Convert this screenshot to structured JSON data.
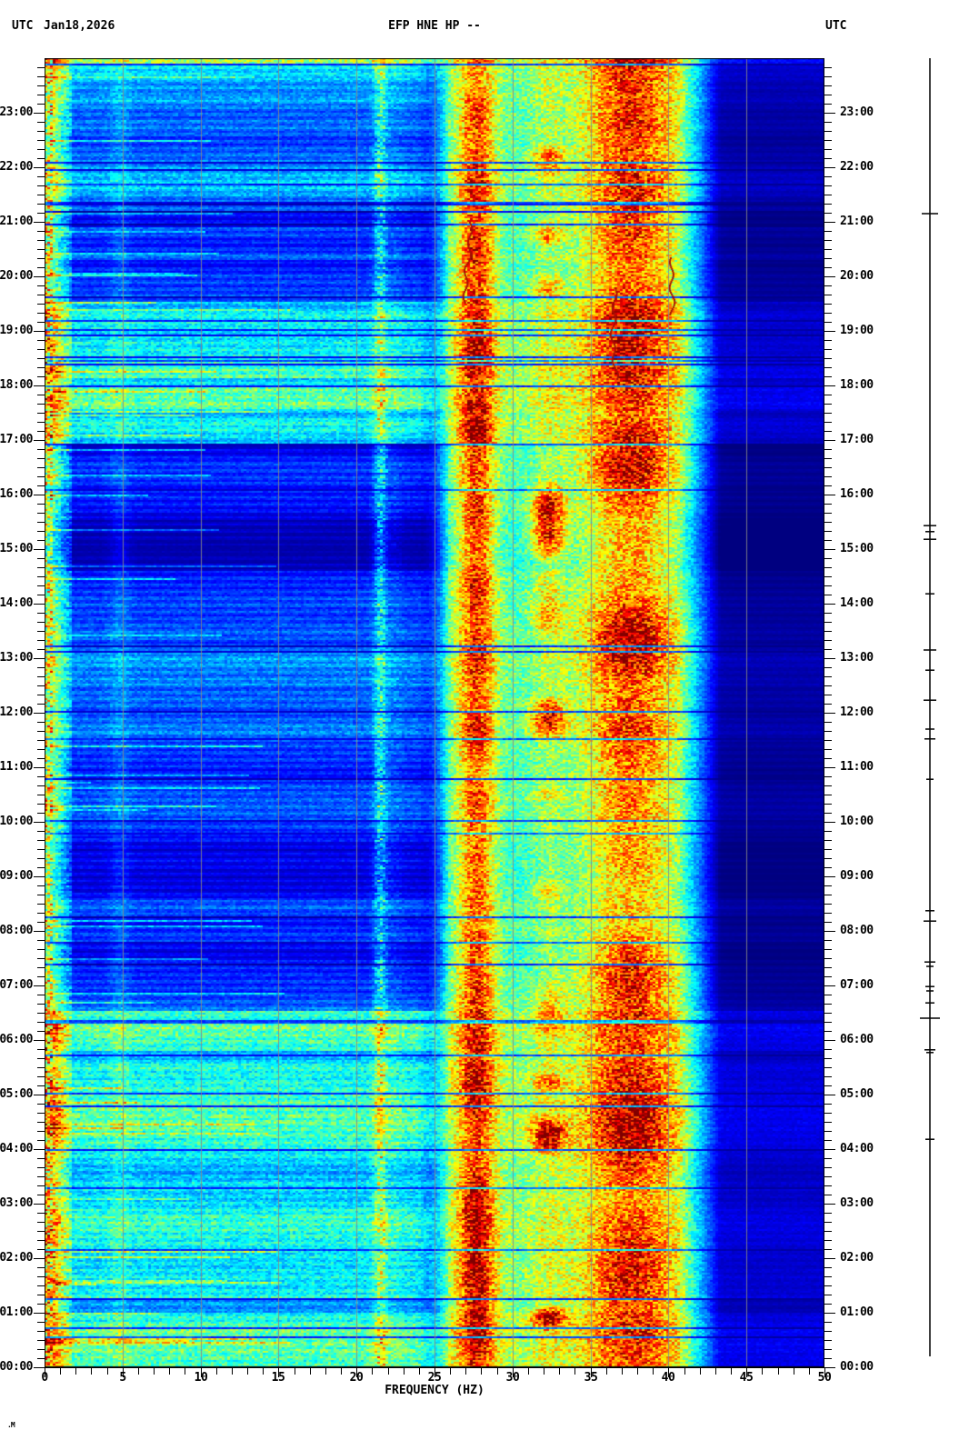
{
  "header": {
    "tz_left": "UTC",
    "date": "Jan18,2026",
    "title": "EFP HNE HP --",
    "tz_right": "UTC"
  },
  "footer": {
    "glyph": ".M"
  },
  "colors": {
    "background": "#ffffff",
    "grid_line": "#8c8c8c",
    "axis": "#000000",
    "trace": "#000000",
    "transient_red": "#a50f05"
  },
  "chart_data": {
    "type": "heatmap",
    "subtype": "seismic spectrogram",
    "title": "EFP HNE HP --",
    "date": "Jan18,2026",
    "timezone": "UTC",
    "xlabel": "FREQUENCY (HZ)",
    "x_range_hz": [
      0,
      50
    ],
    "x_major_ticks_hz": [
      0,
      5,
      10,
      15,
      20,
      25,
      30,
      35,
      40,
      45,
      50
    ],
    "x_tick_labels": [
      "0",
      "5",
      "10",
      "15",
      "20",
      "25",
      "30",
      "35",
      "40",
      "45",
      "50"
    ],
    "x_minor_step_hz": 1,
    "y_range_hours": [
      0,
      24
    ],
    "y_axis_direction": "00:00 at bottom, 24:00 at top",
    "y_tick_labels": [
      "23:00",
      "22:00",
      "21:00",
      "20:00",
      "19:00",
      "18:00",
      "17:00",
      "16:00",
      "15:00",
      "14:00",
      "13:00",
      "12:00",
      "11:00",
      "10:00",
      "09:00",
      "08:00",
      "07:00",
      "06:00",
      "05:00",
      "04:00",
      "03:00",
      "02:00",
      "01:00",
      "00:00"
    ],
    "y_minor_step_minutes": 10,
    "grid_lines_hz": [
      5,
      10,
      15,
      20,
      25,
      30,
      35,
      40,
      45
    ],
    "colormap": "jet",
    "time_periods": [
      {
        "from": 0.0,
        "to": 6.55,
        "level": 0.4,
        "desc": "high broadband noise 00:00-06:30"
      },
      {
        "from": 6.55,
        "to": 16.95,
        "level": 0.17,
        "desc": "quiet daytime 06:30-17:00"
      },
      {
        "from": 16.95,
        "to": 19.35,
        "level": 0.38,
        "desc": "high broadband noise 17:00-19:20"
      },
      {
        "from": 19.35,
        "to": 24.01,
        "level": 0.26,
        "desc": "moderate evening 19:20-24:00"
      }
    ],
    "dark_overlays": [
      {
        "from": 19.55,
        "to": 20.3,
        "delta": -0.13
      },
      {
        "from": 20.9,
        "to": 21.2,
        "delta": -0.07
      },
      {
        "from": 23.3,
        "to": 23.6,
        "delta": -0.08
      },
      {
        "from": 1.0,
        "to": 1.25,
        "delta": -0.16
      },
      {
        "from": 5.55,
        "to": 5.8,
        "delta": -0.1
      },
      {
        "from": 6.3,
        "to": 6.5,
        "delta": -0.1
      },
      {
        "from": 12.5,
        "to": 13.2,
        "delta": 0.08
      },
      {
        "from": 14.6,
        "to": 16.2,
        "delta": -0.05
      },
      {
        "from": 17.4,
        "to": 17.55,
        "delta": -0.12
      },
      {
        "from": 18.0,
        "to": 18.12,
        "delta": -0.12
      }
    ],
    "frequency_bands": {
      "plateau": {
        "rise_hz": [
          24,
          26
        ],
        "fall_hz": [
          40.6,
          43.6
        ],
        "level": 0.47,
        "high_tail_level": 0.045
      },
      "bands": [
        {
          "center_hz": 27.7,
          "sigma_hz": 0.85,
          "amp": 0.24,
          "amp_noise": 0.26,
          "noise_scale": 9,
          "desc": "strong persistent narrowband, red core"
        },
        {
          "center_hz": 32.3,
          "sigma_hz": 0.75,
          "amp": 0.05,
          "amp_noise": 0.45,
          "noise_scale": 7,
          "threshold": 0.58,
          "desc": "intermittent orange blobs"
        },
        {
          "center_hz": 37.6,
          "sigma_hz": 2.1,
          "amp": 0.22,
          "amp_noise": 0.3,
          "noise_scale": 12,
          "desc": "broad strong band, heavy red mottling"
        }
      ],
      "lines": [
        {
          "center_hz": 4.85,
          "sigma_hz": 0.45,
          "amp": 0.06
        },
        {
          "center_hz": 21.55,
          "sigma_hz": 0.3,
          "amp": 0.26
        },
        {
          "center_hz": 22.5,
          "sigma_hz": 0.35,
          "amp": 0.05
        }
      ],
      "low_edge": {
        "hot_below_hz": 0.6,
        "fade_to_hz": 1.8,
        "desc": "very high energy at 0-1 Hz along left edge"
      }
    },
    "transient_red_traces": [
      {
        "hz": 27.2,
        "t_start": 21.0,
        "t_end": 19.5,
        "drift_hz": -0.25
      },
      {
        "hz": 40.25,
        "t_start": 20.35,
        "t_end": 19.3,
        "drift_hz": -0.15
      },
      {
        "hz": 36.4,
        "t_start": 19.8,
        "t_end": 18.1,
        "drift_hz": 0.1
      }
    ],
    "right_trace_events": [
      {
        "t": 21.15,
        "hw": 9
      },
      {
        "t": 15.43,
        "hw": 7
      },
      {
        "t": 15.32,
        "hw": 5
      },
      {
        "t": 15.18,
        "hw": 7
      },
      {
        "t": 14.18,
        "hw": 5
      },
      {
        "t": 13.15,
        "hw": 7
      },
      {
        "t": 12.78,
        "hw": 5
      },
      {
        "t": 12.23,
        "hw": 7
      },
      {
        "t": 11.7,
        "hw": 5
      },
      {
        "t": 11.52,
        "hw": 6
      },
      {
        "t": 10.78,
        "hw": 4
      },
      {
        "t": 8.37,
        "hw": 5
      },
      {
        "t": 8.18,
        "hw": 7
      },
      {
        "t": 7.43,
        "hw": 6
      },
      {
        "t": 7.35,
        "hw": 4
      },
      {
        "t": 6.98,
        "hw": 5
      },
      {
        "t": 6.9,
        "hw": 4
      },
      {
        "t": 6.68,
        "hw": 5
      },
      {
        "t": 6.4,
        "hw": 11
      },
      {
        "t": 5.82,
        "hw": 6
      },
      {
        "t": 5.77,
        "hw": 4
      },
      {
        "t": 4.18,
        "hw": 5
      }
    ]
  }
}
